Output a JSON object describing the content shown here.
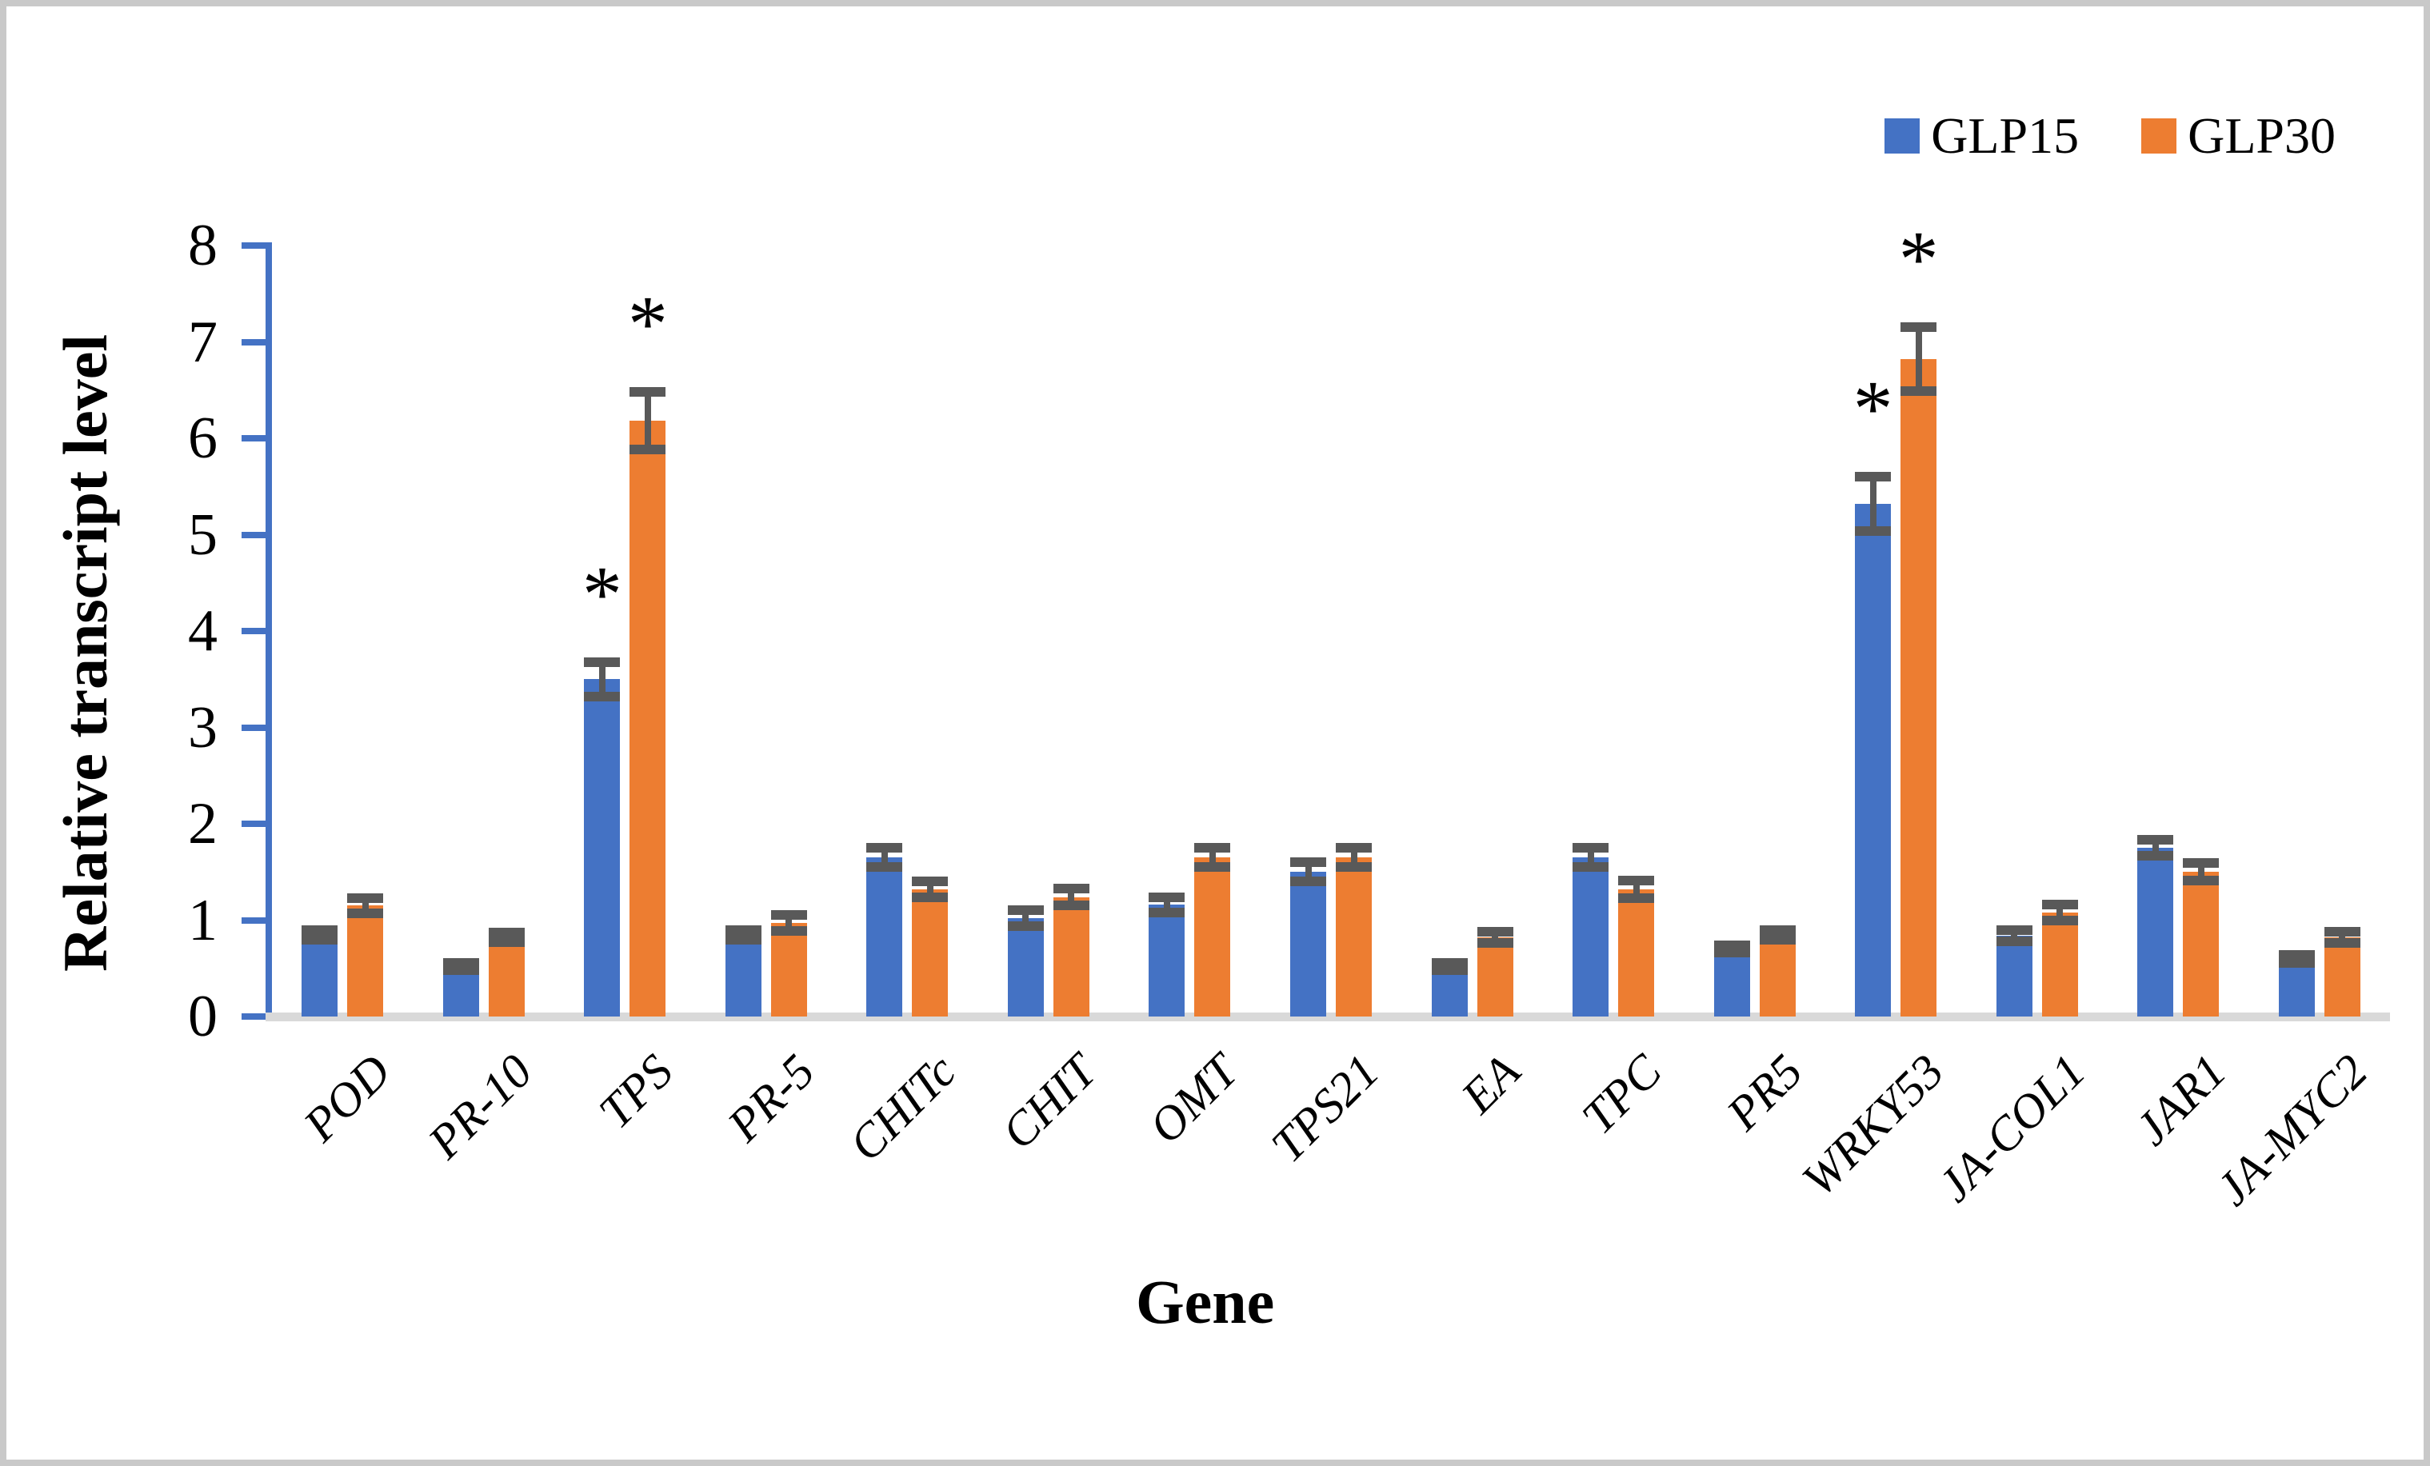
{
  "chart_data": {
    "type": "bar",
    "title": "",
    "xlabel": "Gene",
    "ylabel": "Relative transcript level",
    "ylim": [
      0,
      8
    ],
    "yticks": [
      0,
      1,
      2,
      3,
      4,
      5,
      6,
      7,
      8
    ],
    "grid": false,
    "legend_position": "top-right",
    "significance_marker": "*",
    "categories": [
      "POD",
      "PR-10",
      "TPS",
      "PR-5",
      "CHITc",
      "CHIT",
      "OMT",
      "TPS21",
      "EA",
      "TPC",
      "PR5",
      "WRKY53",
      "JA-COL1",
      "JAR1",
      "JA-MYC2"
    ],
    "series": [
      {
        "name": "GLP15",
        "color": "#4472C4",
        "values": [
          0.85,
          0.52,
          3.5,
          0.85,
          1.65,
          1.02,
          1.16,
          1.5,
          0.52,
          1.65,
          0.7,
          5.32,
          0.84,
          1.75,
          0.6
        ],
        "errors": [
          0.05,
          0.04,
          0.18,
          0.05,
          0.1,
          0.08,
          0.08,
          0.1,
          0.04,
          0.1,
          0.04,
          0.28,
          0.06,
          0.08,
          0.04
        ],
        "significant": [
          false,
          false,
          true,
          false,
          false,
          false,
          false,
          false,
          false,
          false,
          false,
          true,
          false,
          false,
          false
        ]
      },
      {
        "name": "GLP30",
        "color": "#ED7D31",
        "values": [
          1.15,
          0.82,
          6.18,
          0.97,
          1.32,
          1.24,
          1.65,
          1.65,
          0.82,
          1.32,
          0.85,
          6.82,
          1.08,
          1.5,
          0.82
        ],
        "errors": [
          0.08,
          0.05,
          0.3,
          0.08,
          0.08,
          0.09,
          0.1,
          0.1,
          0.06,
          0.09,
          0.05,
          0.33,
          0.08,
          0.09,
          0.06
        ],
        "significant": [
          false,
          false,
          true,
          false,
          false,
          false,
          false,
          false,
          false,
          false,
          false,
          true,
          false,
          false,
          false
        ]
      }
    ],
    "colors": {
      "error_bar": "#595959",
      "axis": "#4472C4",
      "baseline": "#D9D9D9",
      "frame": "#C9C9C9"
    }
  }
}
